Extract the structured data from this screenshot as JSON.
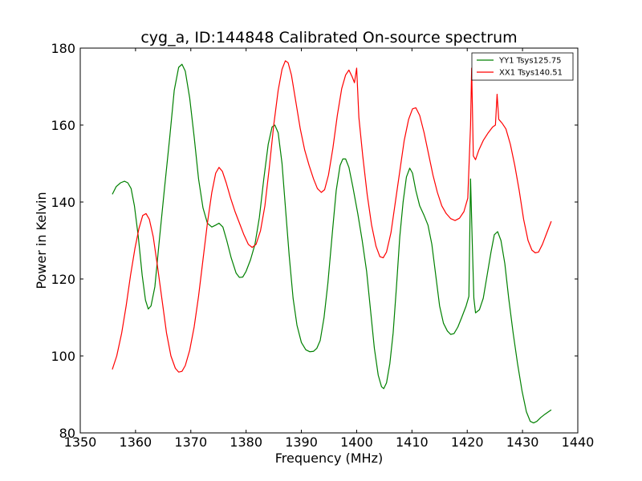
{
  "chart_data": {
    "type": "line",
    "title": "cyg_a, ID:144848 Calibrated On-source spectrum",
    "xlabel": "Frequency (MHz)",
    "ylabel": "Power in Kelvin",
    "xlim": [
      1350,
      1440
    ],
    "ylim": [
      80,
      180
    ],
    "xticks": [
      1350,
      1360,
      1370,
      1380,
      1390,
      1400,
      1410,
      1420,
      1430,
      1440
    ],
    "yticks": [
      80,
      100,
      120,
      140,
      160,
      180
    ],
    "grid": false,
    "legend_position": "top-right",
    "series": [
      {
        "name": "YY1 Tsys125.75",
        "color": "#008000",
        "points": [
          [
            1355.8,
            142
          ],
          [
            1356.5,
            144
          ],
          [
            1357.3,
            145
          ],
          [
            1358,
            145.4
          ],
          [
            1358.6,
            145
          ],
          [
            1359.2,
            143.5
          ],
          [
            1359.8,
            139
          ],
          [
            1360.5,
            131
          ],
          [
            1361.2,
            121
          ],
          [
            1361.8,
            114.5
          ],
          [
            1362.3,
            112.2
          ],
          [
            1362.8,
            113
          ],
          [
            1363.5,
            118
          ],
          [
            1364.3,
            130
          ],
          [
            1365.2,
            143
          ],
          [
            1366.2,
            157
          ],
          [
            1367,
            169
          ],
          [
            1367.8,
            175
          ],
          [
            1368.4,
            175.8
          ],
          [
            1369,
            174
          ],
          [
            1369.8,
            167
          ],
          [
            1370.6,
            157
          ],
          [
            1371.4,
            146
          ],
          [
            1372.2,
            138.5
          ],
          [
            1373,
            134.5
          ],
          [
            1373.8,
            133.5
          ],
          [
            1374.5,
            134
          ],
          [
            1375.1,
            134.5
          ],
          [
            1375.8,
            133.5
          ],
          [
            1376.5,
            130
          ],
          [
            1377.3,
            125.5
          ],
          [
            1378.2,
            121.5
          ],
          [
            1378.8,
            120.4
          ],
          [
            1379.4,
            120.5
          ],
          [
            1380,
            122
          ],
          [
            1380.8,
            125
          ],
          [
            1381.6,
            129
          ],
          [
            1382.4,
            136
          ],
          [
            1383.2,
            146
          ],
          [
            1384,
            155
          ],
          [
            1384.7,
            159.5
          ],
          [
            1385.2,
            160
          ],
          [
            1385.8,
            158
          ],
          [
            1386.5,
            150
          ],
          [
            1387.2,
            137
          ],
          [
            1387.8,
            126
          ],
          [
            1388.5,
            115
          ],
          [
            1389.2,
            108
          ],
          [
            1390,
            103.5
          ],
          [
            1390.8,
            101.6
          ],
          [
            1391.5,
            101.1
          ],
          [
            1392.2,
            101.2
          ],
          [
            1392.8,
            102
          ],
          [
            1393.4,
            104
          ],
          [
            1394.1,
            110
          ],
          [
            1394.8,
            119
          ],
          [
            1395.6,
            132
          ],
          [
            1396.3,
            143
          ],
          [
            1397,
            149.5
          ],
          [
            1397.5,
            151.2
          ],
          [
            1398,
            151.2
          ],
          [
            1398.6,
            149
          ],
          [
            1399.3,
            144
          ],
          [
            1400.2,
            137
          ],
          [
            1401,
            130
          ],
          [
            1401.8,
            122
          ],
          [
            1402.5,
            112
          ],
          [
            1403.2,
            102
          ],
          [
            1403.9,
            95
          ],
          [
            1404.5,
            92
          ],
          [
            1404.9,
            91.5
          ],
          [
            1405.4,
            93
          ],
          [
            1406,
            98
          ],
          [
            1406.6,
            106
          ],
          [
            1407.2,
            118
          ],
          [
            1407.8,
            131
          ],
          [
            1408.4,
            140
          ],
          [
            1409,
            146.5
          ],
          [
            1409.6,
            148.8
          ],
          [
            1410.1,
            147.5
          ],
          [
            1410.7,
            143
          ],
          [
            1411.4,
            139
          ],
          [
            1412.2,
            136.5
          ],
          [
            1412.9,
            134
          ],
          [
            1413.6,
            129
          ],
          [
            1414.3,
            121
          ],
          [
            1415,
            113
          ],
          [
            1415.7,
            108.5
          ],
          [
            1416.4,
            106.5
          ],
          [
            1417,
            105.6
          ],
          [
            1417.6,
            105.8
          ],
          [
            1418.3,
            107.5
          ],
          [
            1419,
            110
          ],
          [
            1419.8,
            113
          ],
          [
            1420.3,
            115.5
          ],
          [
            1420.6,
            146
          ],
          [
            1420.9,
            130
          ],
          [
            1421.2,
            115
          ],
          [
            1421.5,
            111.2
          ],
          [
            1422.2,
            112
          ],
          [
            1422.9,
            115
          ],
          [
            1423.6,
            121
          ],
          [
            1424.3,
            127
          ],
          [
            1424.9,
            131.5
          ],
          [
            1425.5,
            132.3
          ],
          [
            1426.1,
            130
          ],
          [
            1426.8,
            124
          ],
          [
            1427.5,
            115
          ],
          [
            1428.3,
            106
          ],
          [
            1429.1,
            98
          ],
          [
            1429.9,
            91
          ],
          [
            1430.7,
            85.5
          ],
          [
            1431.4,
            83
          ],
          [
            1432,
            82.6
          ],
          [
            1432.6,
            83
          ],
          [
            1433.3,
            84
          ],
          [
            1434,
            84.8
          ],
          [
            1434.7,
            85.5
          ],
          [
            1435.2,
            86
          ]
        ]
      },
      {
        "name": "XX1 Tsys140.51",
        "color": "#ff0000",
        "points": [
          [
            1355.8,
            96.5
          ],
          [
            1356.6,
            100
          ],
          [
            1357.5,
            106
          ],
          [
            1358.3,
            113
          ],
          [
            1359.1,
            121
          ],
          [
            1359.9,
            128
          ],
          [
            1360.6,
            133
          ],
          [
            1361.3,
            136.5
          ],
          [
            1361.9,
            137
          ],
          [
            1362.5,
            135.5
          ],
          [
            1363.2,
            131
          ],
          [
            1364,
            123
          ],
          [
            1364.8,
            114.5
          ],
          [
            1365.6,
            106
          ],
          [
            1366.4,
            100
          ],
          [
            1367.2,
            96.8
          ],
          [
            1367.8,
            95.8
          ],
          [
            1368.4,
            96
          ],
          [
            1369,
            97.5
          ],
          [
            1369.8,
            101.5
          ],
          [
            1370.6,
            107.5
          ],
          [
            1371.4,
            115.5
          ],
          [
            1372.2,
            125
          ],
          [
            1373,
            134.5
          ],
          [
            1373.8,
            142.5
          ],
          [
            1374.5,
            147.5
          ],
          [
            1375.1,
            149
          ],
          [
            1375.7,
            148
          ],
          [
            1376.4,
            145
          ],
          [
            1377.2,
            141
          ],
          [
            1378,
            137.5
          ],
          [
            1378.8,
            134.5
          ],
          [
            1379.6,
            131.5
          ],
          [
            1380.4,
            129
          ],
          [
            1381.1,
            128.2
          ],
          [
            1381.8,
            129
          ],
          [
            1382.6,
            132.5
          ],
          [
            1383.4,
            139
          ],
          [
            1384.2,
            149
          ],
          [
            1385,
            160
          ],
          [
            1385.8,
            169
          ],
          [
            1386.5,
            174.5
          ],
          [
            1387.1,
            176.7
          ],
          [
            1387.6,
            176.2
          ],
          [
            1388.2,
            173
          ],
          [
            1389,
            166
          ],
          [
            1389.8,
            159
          ],
          [
            1390.6,
            153.5
          ],
          [
            1391.4,
            149.5
          ],
          [
            1392.2,
            146
          ],
          [
            1392.9,
            143.5
          ],
          [
            1393.6,
            142.5
          ],
          [
            1394.2,
            143.2
          ],
          [
            1394.9,
            147
          ],
          [
            1395.7,
            154
          ],
          [
            1396.5,
            162.5
          ],
          [
            1397.3,
            169.5
          ],
          [
            1398,
            173
          ],
          [
            1398.6,
            174.3
          ],
          [
            1399.2,
            172.5
          ],
          [
            1399.6,
            171
          ],
          [
            1400,
            174.8
          ],
          [
            1400.4,
            162
          ],
          [
            1401.1,
            152
          ],
          [
            1401.9,
            142
          ],
          [
            1402.7,
            134
          ],
          [
            1403.5,
            128.5
          ],
          [
            1404.2,
            125.8
          ],
          [
            1404.8,
            125.5
          ],
          [
            1405.4,
            127
          ],
          [
            1406.2,
            132
          ],
          [
            1407,
            140
          ],
          [
            1407.8,
            148
          ],
          [
            1408.6,
            156
          ],
          [
            1409.4,
            161.5
          ],
          [
            1410.1,
            164.2
          ],
          [
            1410.7,
            164.5
          ],
          [
            1411.4,
            162.5
          ],
          [
            1412.2,
            158
          ],
          [
            1413,
            152.5
          ],
          [
            1413.8,
            147
          ],
          [
            1414.6,
            142.5
          ],
          [
            1415.4,
            139
          ],
          [
            1416.2,
            137
          ],
          [
            1417,
            135.7
          ],
          [
            1417.8,
            135.2
          ],
          [
            1418.6,
            135.8
          ],
          [
            1419.4,
            137.5
          ],
          [
            1420.1,
            141
          ],
          [
            1420.6,
            160
          ],
          [
            1420.8,
            174.8
          ],
          [
            1421.1,
            152
          ],
          [
            1421.5,
            151
          ],
          [
            1422.1,
            153.5
          ],
          [
            1422.9,
            156
          ],
          [
            1423.8,
            158
          ],
          [
            1424.6,
            159.5
          ],
          [
            1425.1,
            160
          ],
          [
            1425.4,
            168
          ],
          [
            1425.7,
            161.5
          ],
          [
            1426.3,
            160.5
          ],
          [
            1427,
            159
          ],
          [
            1427.8,
            155
          ],
          [
            1428.6,
            149.5
          ],
          [
            1429.4,
            143
          ],
          [
            1430.2,
            135.5
          ],
          [
            1431,
            130
          ],
          [
            1431.7,
            127.5
          ],
          [
            1432.3,
            126.8
          ],
          [
            1432.9,
            127
          ],
          [
            1433.6,
            129
          ],
          [
            1434.4,
            132
          ],
          [
            1435.2,
            135
          ]
        ]
      }
    ]
  }
}
